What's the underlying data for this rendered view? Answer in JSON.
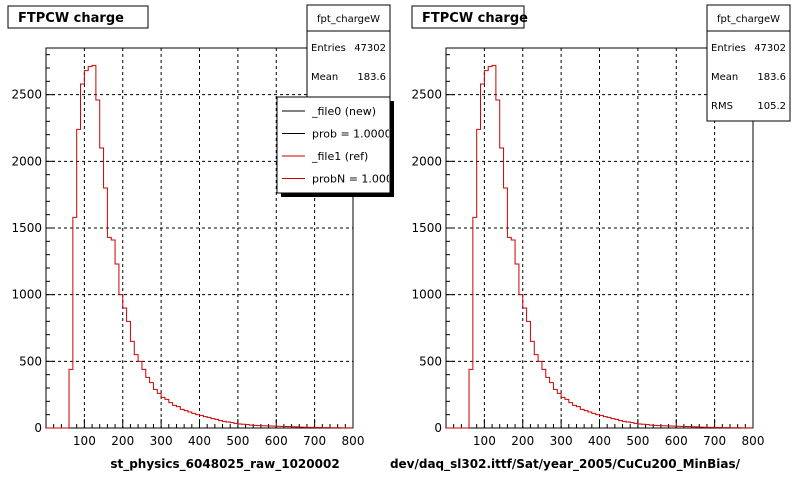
{
  "panels": [
    {
      "title": "FTPCW charge",
      "stats": {
        "name": "fpt_chargeW",
        "rows": [
          {
            "label": "Entries",
            "value": "47302"
          },
          {
            "label": "Mean",
            "value": "183.6"
          }
        ]
      },
      "legend": {
        "entries": [
          {
            "label": "_file0 (new)",
            "color": "#000000"
          },
          {
            "label": "prob = 1.000000",
            "color": "#000000"
          },
          {
            "label": "_file1 (ref)",
            "color": "#cc0000"
          },
          {
            "label": "probN = 1.000000",
            "color": "#cc0000"
          }
        ]
      },
      "xlabel": "st_physics_6048025_raw_1020002"
    },
    {
      "title": "FTPCW charge",
      "stats": {
        "name": "fpt_chargeW",
        "rows": [
          {
            "label": "Entries",
            "value": "47302"
          },
          {
            "label": "Mean",
            "value": "183.6"
          },
          {
            "label": "RMS",
            "value": "105.2"
          }
        ]
      },
      "xlabel": "dev/daq_sl302.ittf/Sat/year_2005/CuCu200_MinBias/"
    }
  ],
  "chart_data": [
    {
      "type": "histogram",
      "title": "FTPCW charge",
      "xlabel": "st_physics_6048025_raw_1020002",
      "ylabel": "",
      "xlim": [
        0,
        800
      ],
      "ylim": [
        0,
        2850
      ],
      "xticks": [
        100,
        200,
        300,
        400,
        500,
        600,
        700,
        800
      ],
      "yticks": [
        0,
        500,
        1000,
        1500,
        2000,
        2500
      ],
      "grid": true,
      "bin_width": 10,
      "bin_start": 0,
      "series": [
        {
          "color": "#cc0000",
          "values": [
            0,
            0,
            0,
            0,
            0,
            0,
            440,
            1580,
            2240,
            2580,
            2680,
            2710,
            2720,
            2460,
            2100,
            1800,
            1430,
            1410,
            1230,
            1000,
            900,
            800,
            650,
            550,
            500,
            440,
            380,
            340,
            290,
            260,
            230,
            215,
            190,
            170,
            160,
            140,
            130,
            120,
            110,
            100,
            95,
            85,
            80,
            70,
            65,
            55,
            50,
            45,
            40,
            35,
            30,
            28,
            25,
            22,
            20,
            18,
            17,
            16,
            15,
            14,
            13,
            12,
            11,
            10,
            9,
            8,
            7,
            6,
            5,
            5,
            4,
            4,
            3,
            3,
            2,
            2,
            2,
            1,
            1,
            1
          ]
        }
      ]
    },
    {
      "type": "histogram",
      "title": "FTPCW charge",
      "xlabel": "dev/daq_sl302.ittf/Sat/year_2005/CuCu200_MinBias/",
      "ylabel": "",
      "xlim": [
        0,
        800
      ],
      "ylim": [
        0,
        2850
      ],
      "xticks": [
        100,
        200,
        300,
        400,
        500,
        600,
        700,
        800
      ],
      "yticks": [
        0,
        500,
        1000,
        1500,
        2000,
        2500
      ],
      "grid": true,
      "bin_width": 10,
      "bin_start": 0,
      "series": [
        {
          "color": "#cc0000",
          "values": [
            0,
            0,
            0,
            0,
            0,
            0,
            440,
            1580,
            2240,
            2580,
            2680,
            2710,
            2720,
            2460,
            2100,
            1800,
            1430,
            1410,
            1230,
            1000,
            900,
            800,
            650,
            550,
            500,
            440,
            380,
            340,
            290,
            260,
            230,
            215,
            190,
            170,
            160,
            140,
            130,
            120,
            110,
            100,
            95,
            85,
            80,
            70,
            65,
            55,
            50,
            45,
            40,
            35,
            30,
            28,
            25,
            22,
            20,
            18,
            17,
            16,
            15,
            14,
            13,
            12,
            11,
            10,
            9,
            8,
            7,
            6,
            5,
            5,
            4,
            4,
            3,
            3,
            2,
            2,
            2,
            1,
            1,
            1
          ]
        }
      ]
    }
  ]
}
